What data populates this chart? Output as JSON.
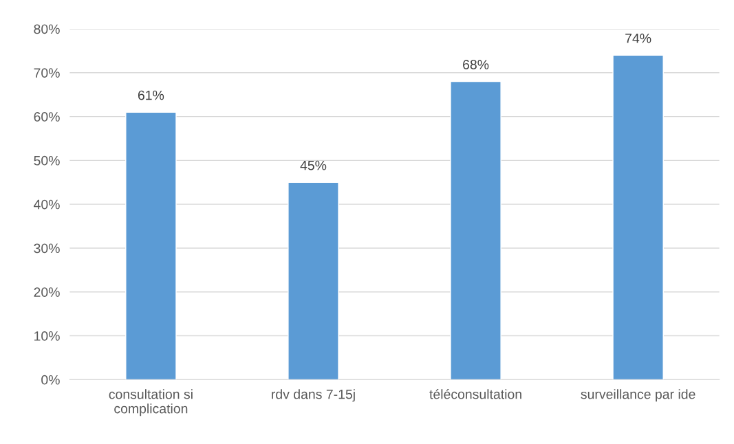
{
  "chart_data": {
    "type": "bar",
    "categories": [
      "consultation si\ncomplication",
      "rdv dans 7-15j",
      "téléconsultation",
      "surveillance par ide"
    ],
    "values": [
      61,
      45,
      68,
      74
    ],
    "value_labels": [
      "61%",
      "45%",
      "68%",
      "74%"
    ],
    "color": "#5b9bd5",
    "ylim": [
      0,
      80
    ],
    "yticks": [
      {
        "value": 0,
        "label": "0%"
      },
      {
        "value": 10,
        "label": "10%"
      },
      {
        "value": 20,
        "label": "20%"
      },
      {
        "value": 30,
        "label": "30%"
      },
      {
        "value": 40,
        "label": "40%"
      },
      {
        "value": 50,
        "label": "50%"
      },
      {
        "value": 60,
        "label": "60%"
      },
      {
        "value": 70,
        "label": "70%"
      },
      {
        "value": 80,
        "label": "80%"
      }
    ],
    "grid": "y",
    "legend": false
  }
}
